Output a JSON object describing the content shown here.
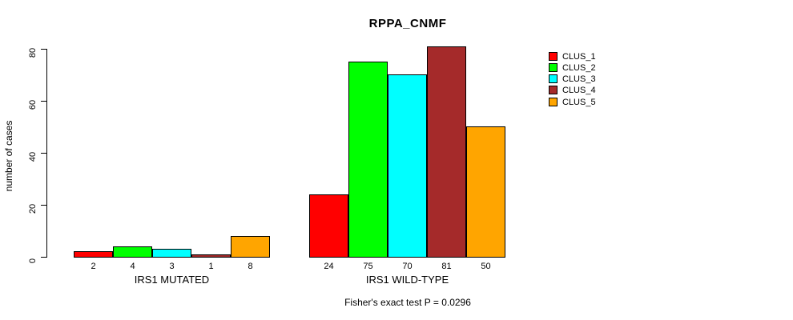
{
  "chart_data": {
    "type": "bar",
    "title": "RPPA_CNMF",
    "ylabel": "number of cases",
    "ylim": [
      0,
      81
    ],
    "yticks": [
      0,
      20,
      40,
      60,
      80
    ],
    "grid": false,
    "legend_position": "right",
    "categories": [
      "IRS1 MUTATED",
      "IRS1 WILD-TYPE"
    ],
    "series": [
      {
        "name": "CLUS_1",
        "color": "#FF0000",
        "values": [
          2,
          24
        ]
      },
      {
        "name": "CLUS_2",
        "color": "#00FF00",
        "values": [
          4,
          75
        ]
      },
      {
        "name": "CLUS_3",
        "color": "#00FFFF",
        "values": [
          3,
          70
        ]
      },
      {
        "name": "CLUS_4",
        "color": "#A52A2A",
        "values": [
          1,
          81
        ]
      },
      {
        "name": "CLUS_5",
        "color": "#FFA500",
        "values": [
          8,
          50
        ]
      }
    ],
    "bar_value_labels": [
      [
        "2",
        "4",
        "3",
        "1",
        "8"
      ],
      [
        "24",
        "75",
        "70",
        "81",
        "50"
      ]
    ],
    "annotation": "Fisher's exact test P = 0.0296"
  },
  "legend": {
    "items": [
      {
        "label": "CLUS_1",
        "color": "#FF0000"
      },
      {
        "label": "CLUS_2",
        "color": "#00FF00"
      },
      {
        "label": "CLUS_3",
        "color": "#00FFFF"
      },
      {
        "label": "CLUS_4",
        "color": "#A52A2A"
      },
      {
        "label": "CLUS_5",
        "color": "#FFA500"
      }
    ]
  }
}
